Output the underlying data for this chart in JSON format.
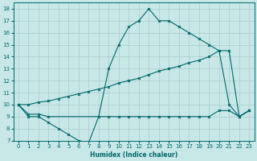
{
  "xlabel": "Humidex (Indice chaleur)",
  "bg_color": "#c8e8e8",
  "grid_color": "#b0cece",
  "line_color": "#006868",
  "xlim": [
    -0.5,
    23.5
  ],
  "ylim": [
    7,
    18.5
  ],
  "yticks": [
    7,
    8,
    9,
    10,
    11,
    12,
    13,
    14,
    15,
    16,
    17,
    18
  ],
  "xticks": [
    0,
    1,
    2,
    3,
    4,
    5,
    6,
    7,
    8,
    9,
    10,
    11,
    12,
    13,
    14,
    15,
    16,
    17,
    18,
    19,
    20,
    21,
    22,
    23
  ],
  "line1_x": [
    0,
    1,
    2,
    3,
    4,
    5,
    6,
    7,
    8,
    9,
    10,
    11,
    12,
    13,
    14,
    15,
    16,
    17,
    18,
    19,
    20,
    21,
    22,
    23
  ],
  "line1_y": [
    10,
    9,
    9,
    8.5,
    8,
    7.5,
    7,
    6.8,
    9,
    13,
    15,
    16.5,
    17,
    18,
    17,
    17,
    16.5,
    16,
    15.5,
    15,
    14.5,
    10,
    9,
    9.5
  ],
  "line2_x": [
    0,
    1,
    2,
    3,
    9,
    10,
    11,
    12,
    13,
    14,
    15,
    16,
    17,
    18,
    19,
    20,
    21,
    22,
    23
  ],
  "line2_y": [
    10,
    9.2,
    9.2,
    9.0,
    9.0,
    9.0,
    9.0,
    9.0,
    9.0,
    9.0,
    9.0,
    9.0,
    9.0,
    9.0,
    9.0,
    9.5,
    9.5,
    9.0,
    9.5
  ],
  "line3_x": [
    0,
    1,
    2,
    3,
    4,
    5,
    6,
    7,
    8,
    9,
    10,
    11,
    12,
    13,
    14,
    15,
    16,
    17,
    18,
    19,
    20,
    21,
    22,
    23
  ],
  "line3_y": [
    10,
    10.0,
    10.2,
    10.3,
    10.5,
    10.7,
    10.9,
    11.1,
    11.3,
    11.5,
    11.8,
    12.0,
    12.2,
    12.5,
    12.8,
    13.0,
    13.2,
    13.5,
    13.7,
    14.0,
    14.5,
    14.5,
    9.0,
    9.5
  ],
  "xlabel_fontsize": 5.5,
  "tick_fontsize": 5.0
}
